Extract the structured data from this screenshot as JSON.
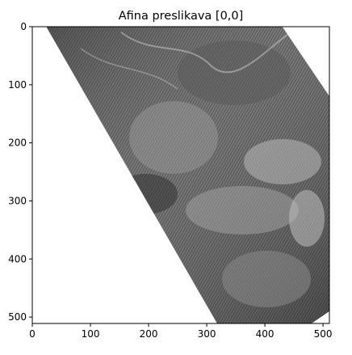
{
  "title": "Afina preslikava [0,0]",
  "axes": {
    "x_ticks": [
      "0",
      "100",
      "200",
      "300",
      "400",
      "500"
    ],
    "y_ticks": [
      "0",
      "100",
      "200",
      "300",
      "400",
      "500"
    ],
    "x_range": [
      0,
      511
    ],
    "y_range": [
      0,
      511
    ]
  },
  "image": {
    "kind": "grayscale-photo",
    "background": "#ffffff",
    "warped_region_polygon_data": [
      [
        24,
        0
      ],
      [
        430,
        0
      ],
      [
        511,
        120
      ],
      [
        511,
        490
      ],
      [
        480,
        511
      ],
      [
        318,
        511
      ],
      [
        24,
        0
      ]
    ]
  }
}
